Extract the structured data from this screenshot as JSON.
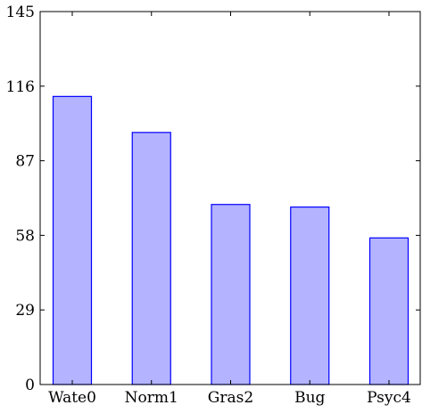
{
  "chart_data": {
    "type": "bar",
    "categories": [
      "Wate0",
      "Norm1",
      "Gras2",
      "Bug",
      "Psyc4"
    ],
    "values": [
      112,
      98,
      70,
      69,
      57
    ],
    "ylim": [
      0,
      145
    ],
    "yticks": [
      0,
      29,
      58,
      87,
      116,
      145
    ],
    "title": "",
    "xlabel": "",
    "ylabel": "",
    "grid": false,
    "legend": "none",
    "colors": {
      "bar_fill": "#b3b3ff",
      "bar_stroke": "#0000ff",
      "axis": "#000000"
    }
  }
}
